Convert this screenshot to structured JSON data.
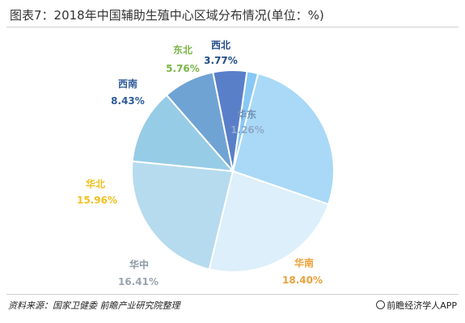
{
  "title": "图表7：2018年中国辅助生殖中心区域分布情况(单位：%)",
  "source": "资料来源：国家卫健委 前瞻产业研究院整理",
  "brand": "前瞻经济学人APP",
  "chart_data": {
    "type": "pie",
    "title": "图表7：2018年中国辅助生殖中心区域分布情况(单位：%)",
    "unit": "%",
    "slices": [
      {
        "name": "华东",
        "value": 1.26,
        "label": "1.26%",
        "color": "#87C8F5",
        "name_color": "#6E8FB8",
        "value_color": "#8FA9C8"
      },
      {
        "name": "华南",
        "value": 18.4,
        "label": "18.40%",
        "color": "#A9D9F7",
        "name_color": "#E9A23B",
        "value_color": "#E9A23B"
      },
      {
        "name": "华中",
        "value": 16.41,
        "label": "16.41%",
        "color": "#DCEFFA",
        "name_color": "#8C97A6",
        "value_color": "#9AA4B1"
      },
      {
        "name": "华北",
        "value": 15.96,
        "label": "15.96%",
        "color": "#B6DBEE",
        "name_color": "#F2C01E",
        "value_color": "#F2C01E"
      },
      {
        "name": "西南",
        "value": 8.43,
        "label": "8.43%",
        "color": "#97CCE6",
        "name_color": "#2F5C9A",
        "value_color": "#2F5C9A"
      },
      {
        "name": "东北",
        "value": 5.76,
        "label": "5.76%",
        "color": "#6FA3D4",
        "name_color": "#7BB648",
        "value_color": "#7BB648"
      },
      {
        "name": "西北",
        "value": 3.77,
        "label": "3.77%",
        "color": "#5A7FC9",
        "name_color": "#244E86",
        "value_color": "#244E86"
      }
    ]
  }
}
